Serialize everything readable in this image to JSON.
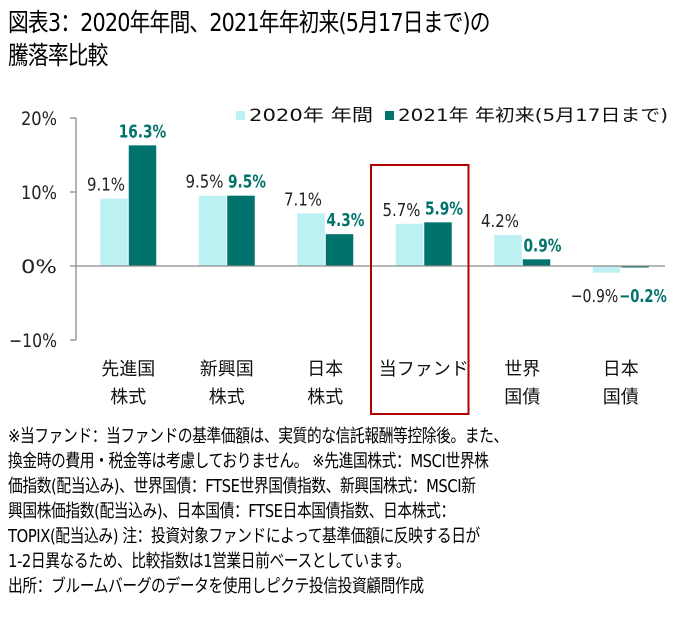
{
  "title_lines": [
    "図表3：2020年年間、2021年年初来(5月17日まで)の",
    "騰落率比較"
  ],
  "chart_data": {
    "type": "bar",
    "title": "図表3：2020年年間、2021年年初来(5月17日まで)の騰落率比較",
    "categories": [
      [
        "先進国",
        "株式"
      ],
      [
        "新興国",
        "株式"
      ],
      [
        "日本",
        "株式"
      ],
      [
        "当ファンド"
      ],
      [
        "世界",
        "国債"
      ],
      [
        "日本",
        "国債"
      ]
    ],
    "series": [
      {
        "name": "2020年 年間",
        "color": "#bdf0f2",
        "values": [
          9.1,
          9.5,
          7.1,
          5.7,
          4.2,
          -0.9
        ],
        "labels": [
          "9.1%",
          "9.5%",
          "7.1%",
          "5.7%",
          "4.2%",
          "−0.9%"
        ]
      },
      {
        "name": "2021年 年初来(5月17日まで)",
        "color": "#00736d",
        "values": [
          16.3,
          9.5,
          4.3,
          5.9,
          0.9,
          -0.2
        ],
        "labels": [
          "16.3%",
          "9.5%",
          "4.3%",
          "5.9%",
          "0.9%",
          "−0.2%"
        ]
      }
    ],
    "ylim": [
      -10,
      20
    ],
    "yticks": [
      20,
      10,
      0,
      -10
    ],
    "ytick_labels": [
      "20%",
      "10%",
      "0%",
      "−10%"
    ],
    "xlabel": "",
    "ylabel": "",
    "legend": "top-right",
    "grid": false,
    "highlight_category": "当ファンド",
    "highlight_color": "#b00000"
  },
  "notes": [
    "※当ファンド：当ファンドの基準価額は、実質的な信託報酬等控除後。また、",
    "換金時の費用・税金等は考慮しておりません。 ※先進国株式：MSCI世界株",
    "価指数(配当込み)、世界国債：FTSE世界国債指数、新興国株式：MSCI新",
    "興国株価指数(配当込み)、日本国債：FTSE日本国債指数、日本株式：",
    "TOPIX(配当込み)  注：投資対象ファンドによって基準価額に反映する日が",
    "1-2日異なるため、比較指数は1営業日前ベースとしています。",
    "出所：ブルームバーグのデータを使用しピクテ投信投資顧問作成"
  ]
}
